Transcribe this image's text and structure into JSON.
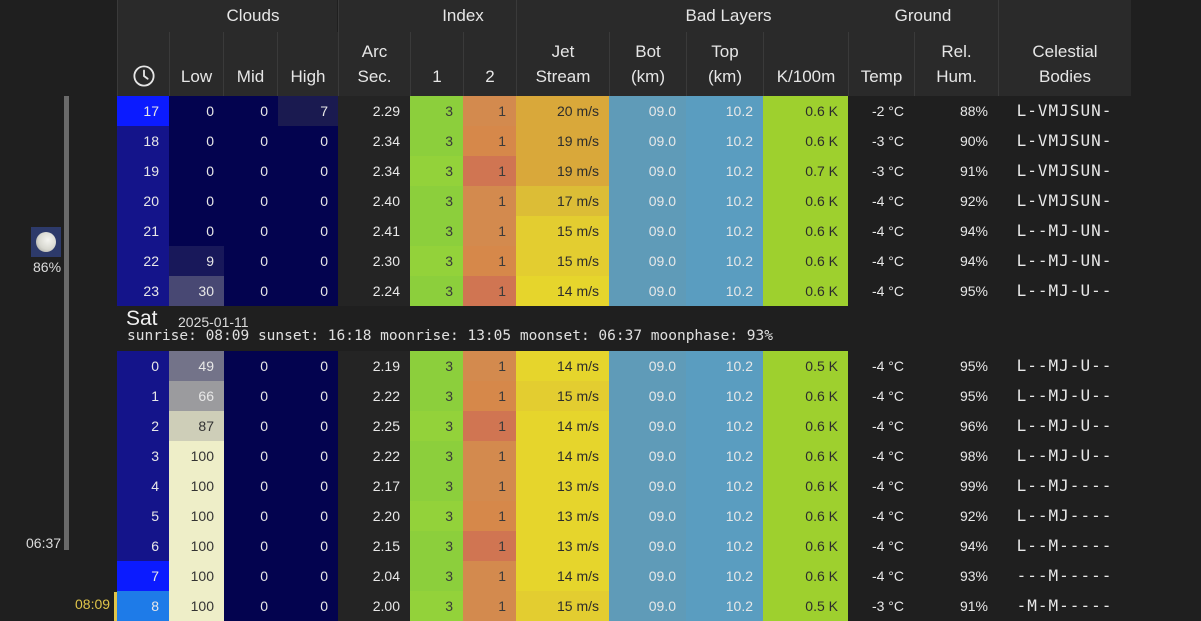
{
  "sidebar": {
    "moon_illumination": "86%",
    "moonset_time": "06:37",
    "current_time": "08:09"
  },
  "header": {
    "groups": {
      "clouds": "Clouds",
      "index": "Index",
      "bad_layers": "Bad Layers",
      "ground": "Ground"
    },
    "columns": {
      "low": "Low",
      "mid": "Mid",
      "high": "High",
      "arc_line1": "Arc",
      "arc_line2": "Sec.",
      "index1": "1",
      "index2": "2",
      "jet_line1": "Jet",
      "jet_line2": "Stream",
      "bot_line1": "Bot",
      "bot_line2": "(km)",
      "top_line1": "Top",
      "top_line2": "(km)",
      "k100m": "K/100m",
      "temp": "Temp",
      "hum_line1": "Rel.",
      "hum_line2": "Hum.",
      "cel_line1": "Celestial",
      "cel_line2": "Bodies"
    }
  },
  "day2": {
    "name": "Sat",
    "date": "2025-01-11",
    "info": "sunrise: 08:09 sunset: 16:18 moonrise: 13:05 moonset: 06:37 moonphase: 93%"
  },
  "rows_day1": [
    {
      "hour": "17",
      "low": "0",
      "mid": "0",
      "high": "7",
      "arc": "2.29",
      "i1": "3",
      "i2": "1",
      "jet": "20 m/s",
      "bot": "09.0",
      "top": "10.2",
      "k": "0.6 K",
      "temp": "-2 °C",
      "hum": "88%",
      "cel": "L-VMJSUN-"
    },
    {
      "hour": "18",
      "low": "0",
      "mid": "0",
      "high": "0",
      "arc": "2.34",
      "i1": "3",
      "i2": "1",
      "jet": "19 m/s",
      "bot": "09.0",
      "top": "10.2",
      "k": "0.6 K",
      "temp": "-3 °C",
      "hum": "90%",
      "cel": "L-VMJSUN-"
    },
    {
      "hour": "19",
      "low": "0",
      "mid": "0",
      "high": "0",
      "arc": "2.34",
      "i1": "3",
      "i2": "1",
      "jet": "19 m/s",
      "bot": "09.0",
      "top": "10.2",
      "k": "0.7 K",
      "temp": "-3 °C",
      "hum": "91%",
      "cel": "L-VMJSUN-"
    },
    {
      "hour": "20",
      "low": "0",
      "mid": "0",
      "high": "0",
      "arc": "2.40",
      "i1": "3",
      "i2": "1",
      "jet": "17 m/s",
      "bot": "09.0",
      "top": "10.2",
      "k": "0.6 K",
      "temp": "-4 °C",
      "hum": "92%",
      "cel": "L-VMJSUN-"
    },
    {
      "hour": "21",
      "low": "0",
      "mid": "0",
      "high": "0",
      "arc": "2.41",
      "i1": "3",
      "i2": "1",
      "jet": "15 m/s",
      "bot": "09.0",
      "top": "10.2",
      "k": "0.6 K",
      "temp": "-4 °C",
      "hum": "94%",
      "cel": "L--MJ-UN-"
    },
    {
      "hour": "22",
      "low": "9",
      "mid": "0",
      "high": "0",
      "arc": "2.30",
      "i1": "3",
      "i2": "1",
      "jet": "15 m/s",
      "bot": "09.0",
      "top": "10.2",
      "k": "0.6 K",
      "temp": "-4 °C",
      "hum": "94%",
      "cel": "L--MJ-UN-"
    },
    {
      "hour": "23",
      "low": "30",
      "mid": "0",
      "high": "0",
      "arc": "2.24",
      "i1": "3",
      "i2": "1",
      "jet": "14 m/s",
      "bot": "09.0",
      "top": "10.2",
      "k": "0.6 K",
      "temp": "-4 °C",
      "hum": "95%",
      "cel": "L--MJ-U--"
    }
  ],
  "rows_day2": [
    {
      "hour": "0",
      "low": "49",
      "mid": "0",
      "high": "0",
      "arc": "2.19",
      "i1": "3",
      "i2": "1",
      "jet": "14 m/s",
      "bot": "09.0",
      "top": "10.2",
      "k": "0.5 K",
      "temp": "-4 °C",
      "hum": "95%",
      "cel": "L--MJ-U--"
    },
    {
      "hour": "1",
      "low": "66",
      "mid": "0",
      "high": "0",
      "arc": "2.22",
      "i1": "3",
      "i2": "1",
      "jet": "15 m/s",
      "bot": "09.0",
      "top": "10.2",
      "k": "0.6 K",
      "temp": "-4 °C",
      "hum": "95%",
      "cel": "L--MJ-U--"
    },
    {
      "hour": "2",
      "low": "87",
      "mid": "0",
      "high": "0",
      "arc": "2.25",
      "i1": "3",
      "i2": "1",
      "jet": "14 m/s",
      "bot": "09.0",
      "top": "10.2",
      "k": "0.6 K",
      "temp": "-4 °C",
      "hum": "96%",
      "cel": "L--MJ-U--"
    },
    {
      "hour": "3",
      "low": "100",
      "mid": "0",
      "high": "0",
      "arc": "2.22",
      "i1": "3",
      "i2": "1",
      "jet": "14 m/s",
      "bot": "09.0",
      "top": "10.2",
      "k": "0.6 K",
      "temp": "-4 °C",
      "hum": "98%",
      "cel": "L--MJ-U--"
    },
    {
      "hour": "4",
      "low": "100",
      "mid": "0",
      "high": "0",
      "arc": "2.17",
      "i1": "3",
      "i2": "1",
      "jet": "13 m/s",
      "bot": "09.0",
      "top": "10.2",
      "k": "0.6 K",
      "temp": "-4 °C",
      "hum": "99%",
      "cel": "L--MJ----"
    },
    {
      "hour": "5",
      "low": "100",
      "mid": "0",
      "high": "0",
      "arc": "2.20",
      "i1": "3",
      "i2": "1",
      "jet": "13 m/s",
      "bot": "09.0",
      "top": "10.2",
      "k": "0.6 K",
      "temp": "-4 °C",
      "hum": "92%",
      "cel": "L--MJ----"
    },
    {
      "hour": "6",
      "low": "100",
      "mid": "0",
      "high": "0",
      "arc": "2.15",
      "i1": "3",
      "i2": "1",
      "jet": "13 m/s",
      "bot": "09.0",
      "top": "10.2",
      "k": "0.6 K",
      "temp": "-4 °C",
      "hum": "94%",
      "cel": "L--M-----"
    },
    {
      "hour": "7",
      "low": "100",
      "mid": "0",
      "high": "0",
      "arc": "2.04",
      "i1": "3",
      "i2": "1",
      "jet": "14 m/s",
      "bot": "09.0",
      "top": "10.2",
      "k": "0.6 K",
      "temp": "-4 °C",
      "hum": "93%",
      "cel": "---M-----"
    },
    {
      "hour": "8",
      "low": "100",
      "mid": "0",
      "high": "0",
      "arc": "2.00",
      "i1": "3",
      "i2": "1",
      "jet": "15 m/s",
      "bot": "09.0",
      "top": "10.2",
      "k": "0.5 K",
      "temp": "-3 °C",
      "hum": "91%",
      "cel": "-M-M-----"
    }
  ],
  "colors": {
    "hour_dark": "#14148a",
    "hour_bright": "#0b1bff",
    "hour_now": "#1e7be8",
    "clouds_zero": "#03034f",
    "arc_bg": "#242424",
    "index1_bg": "#8fd13a",
    "index2_bg": "#d9924a",
    "jet_bg": "#e0c83a",
    "bot_bg": "#5f9bb8",
    "top_bg": "#5a9dc0",
    "k_bg": "#9ed02e",
    "now_marker": "#e0c54a"
  }
}
